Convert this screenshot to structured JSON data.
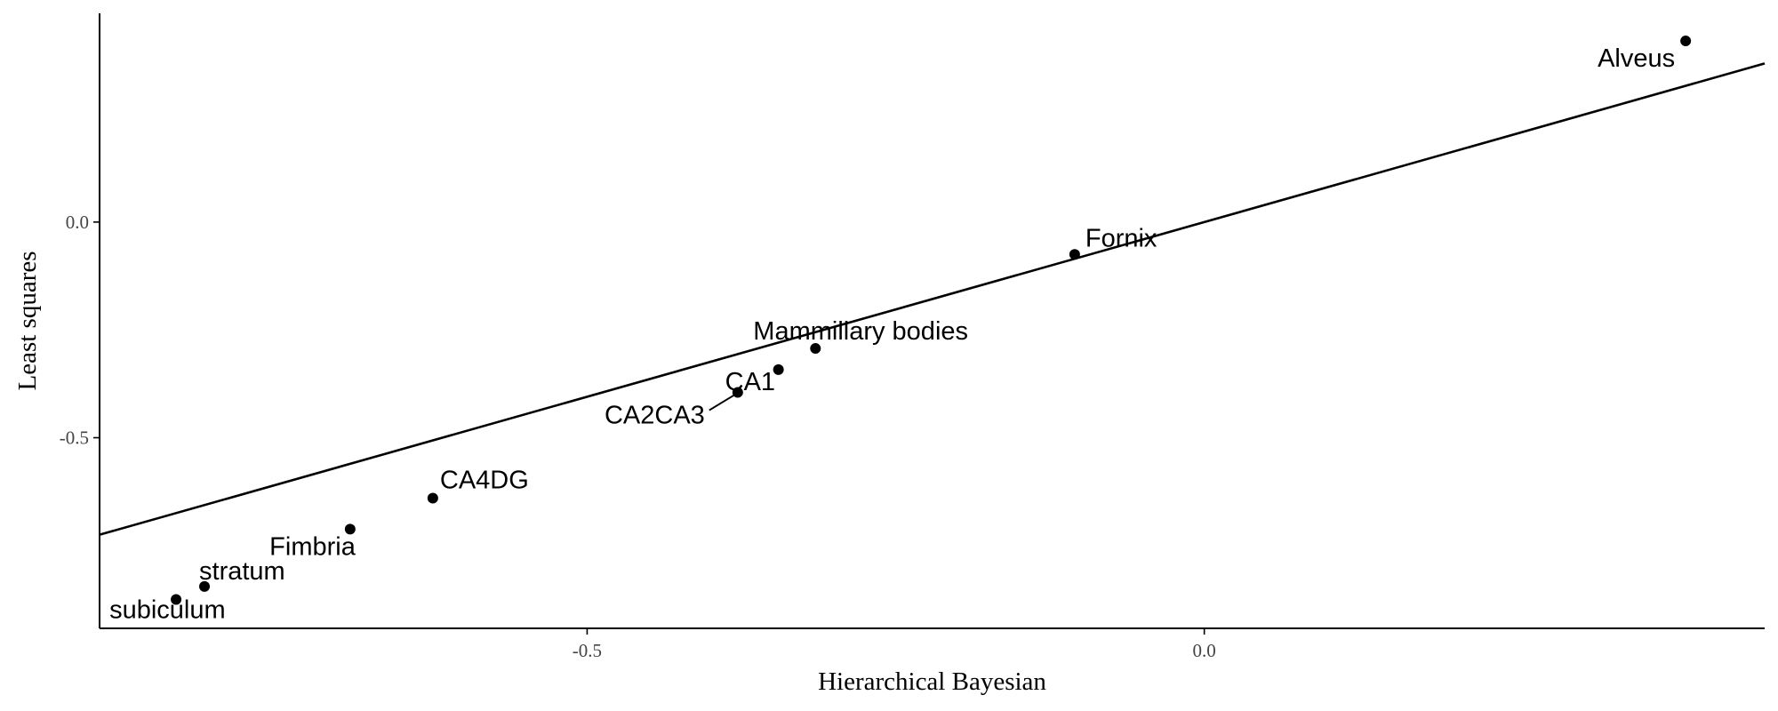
{
  "chart_data": {
    "type": "scatter",
    "title": "",
    "xlabel": "Hierarchical Bayesian",
    "ylabel": "Least squares",
    "xlim": [
      -0.895,
      0.454
    ],
    "ylim": [
      -0.942,
      0.484
    ],
    "x_ticks": [
      -0.5,
      0.0
    ],
    "x_tick_labels": [
      "-0.5",
      "0.0"
    ],
    "y_ticks": [
      0.0,
      -0.5
    ],
    "y_tick_labels": [
      "0.0",
      "-0.5"
    ],
    "grid": false,
    "legend": "none",
    "fit_line": {
      "slope": 0.81,
      "intercept": 0.0,
      "x_range": [
        -0.895,
        0.454
      ]
    },
    "points": [
      {
        "label": "Alveus",
        "x": 0.39,
        "y": 0.42
      },
      {
        "label": "Fornix",
        "x": -0.105,
        "y": -0.075
      },
      {
        "label": "Mammillary bodies",
        "x": -0.315,
        "y": -0.293
      },
      {
        "label": "CA1",
        "x": -0.345,
        "y": -0.342
      },
      {
        "label": "CA2CA3",
        "x": -0.378,
        "y": -0.395
      },
      {
        "label": "CA4DG",
        "x": -0.625,
        "y": -0.64
      },
      {
        "label": "Fimbria",
        "x": -0.692,
        "y": -0.712
      },
      {
        "label": "stratum",
        "x": -0.81,
        "y": -0.845
      },
      {
        "label": "subiculum",
        "x": -0.833,
        "y": -0.875
      }
    ]
  }
}
